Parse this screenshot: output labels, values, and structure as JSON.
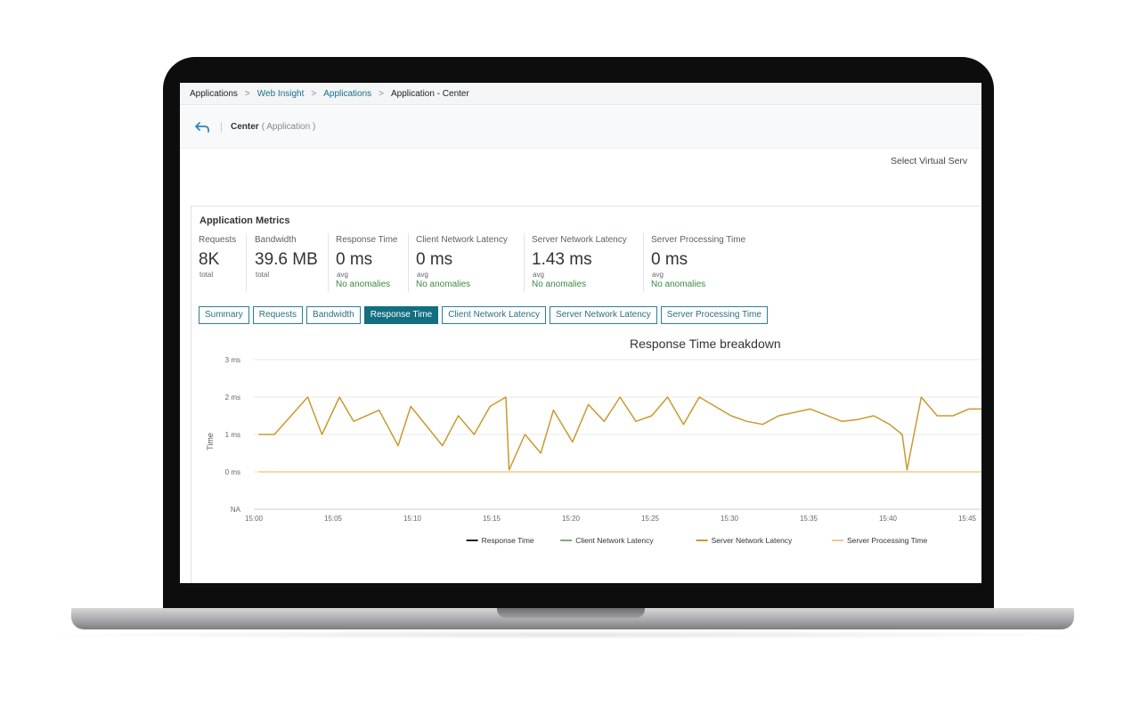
{
  "breadcrumb": {
    "items": [
      "Applications",
      "Web Insight",
      "Applications",
      "Application - Center"
    ]
  },
  "header": {
    "title": "Center",
    "subtitle": "( Application )",
    "back_icon": "back-arrow-icon"
  },
  "select_virtual_server_label": "Select Virtual Serv",
  "metrics_panel": {
    "title": "Application Metrics",
    "metrics": [
      {
        "label": "Requests",
        "value": "8K",
        "unit": "total",
        "anomalies": ""
      },
      {
        "label": "Bandwidth",
        "value": "39.6 MB",
        "unit": "total",
        "anomalies": ""
      },
      {
        "label": "Response Time",
        "value": "0 ms",
        "unit": "avg",
        "anomalies": "No anomalies"
      },
      {
        "label": "Client Network Latency",
        "value": "0 ms",
        "unit": "avg",
        "anomalies": "No anomalies"
      },
      {
        "label": "Server Network Latency",
        "value": "1.43 ms",
        "unit": "avg",
        "anomalies": "No anomalies"
      },
      {
        "label": "Server Processing Time",
        "value": "0 ms",
        "unit": "avg",
        "anomalies": "No anomalies"
      }
    ]
  },
  "tabs": [
    {
      "label": "Summary",
      "active": false
    },
    {
      "label": "Requests",
      "active": false
    },
    {
      "label": "Bandwidth",
      "active": false
    },
    {
      "label": "Response Time",
      "active": true
    },
    {
      "label": "Client Network Latency",
      "active": false
    },
    {
      "label": "Server Network Latency",
      "active": false
    },
    {
      "label": "Server Processing Time",
      "active": false
    }
  ],
  "colors": {
    "accent": "#136f80",
    "link": "#1a6f8a",
    "anomaly_green": "#3d8a3f"
  },
  "chart_data": {
    "type": "line",
    "title": "Response Time breakdown",
    "xlabel": "",
    "ylabel": "Time",
    "x_tick_labels": [
      "15:00",
      "15:05",
      "15:10",
      "15:15",
      "15:20",
      "15:25",
      "15:30",
      "15:35",
      "15:40",
      "15:45"
    ],
    "y_tick_labels": [
      "NA",
      "0 ms",
      "1 ms",
      "2 ms",
      "3 ms"
    ],
    "ylim": [
      -1,
      3
    ],
    "xlim_minutes_after_15_00": [
      0,
      46
    ],
    "grid": true,
    "legend_position": "bottom",
    "series": [
      {
        "name": "Response Time",
        "color": "#222222",
        "points": []
      },
      {
        "name": "Client Network Latency",
        "color": "#7faa82",
        "points": []
      },
      {
        "name": "Server Network Latency",
        "color": "#c99a2e",
        "points": [
          [
            0.3,
            1
          ],
          [
            1.3,
            1
          ],
          [
            3.4,
            2
          ],
          [
            4.3,
            1
          ],
          [
            5.4,
            2
          ],
          [
            6.3,
            1.35
          ],
          [
            7.9,
            1.65
          ],
          [
            9.1,
            0.7
          ],
          [
            9.9,
            1.75
          ],
          [
            11.9,
            0.7
          ],
          [
            12.9,
            1.5
          ],
          [
            13.9,
            1
          ],
          [
            14.9,
            1.75
          ],
          [
            15.9,
            2
          ],
          [
            16.1,
            0.05
          ],
          [
            17.1,
            1
          ],
          [
            18.1,
            0.5
          ],
          [
            18.9,
            1.65
          ],
          [
            20.1,
            0.8
          ],
          [
            21.1,
            1.8
          ],
          [
            22.1,
            1.35
          ],
          [
            23.1,
            2
          ],
          [
            24.1,
            1.35
          ],
          [
            25.1,
            1.5
          ],
          [
            26.1,
            2
          ],
          [
            27.1,
            1.27
          ],
          [
            28.1,
            2
          ],
          [
            29.1,
            1.75
          ],
          [
            30.1,
            1.5
          ],
          [
            31.1,
            1.35
          ],
          [
            32.1,
            1.27
          ],
          [
            33.1,
            1.5
          ],
          [
            35.1,
            1.68
          ],
          [
            37.1,
            1.35
          ],
          [
            38.1,
            1.4
          ],
          [
            39.1,
            1.5
          ],
          [
            40.1,
            1.27
          ],
          [
            40.9,
            1
          ],
          [
            41.2,
            0.05
          ],
          [
            42.1,
            2
          ],
          [
            43.1,
            1.5
          ],
          [
            44.1,
            1.5
          ],
          [
            45.1,
            1.68
          ],
          [
            46,
            1.68
          ]
        ]
      },
      {
        "name": "Server Processing Time",
        "color": "#f0c890",
        "points": [
          [
            0.3,
            0
          ],
          [
            46,
            0
          ]
        ]
      }
    ]
  }
}
